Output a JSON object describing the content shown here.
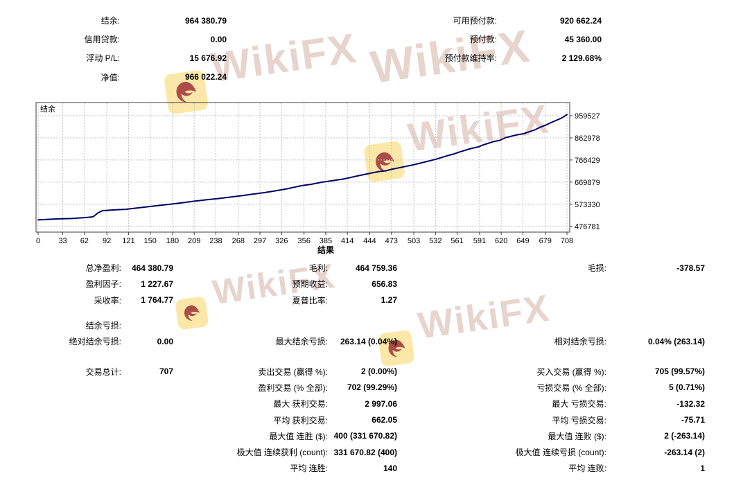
{
  "account_summary": {
    "left": [
      {
        "label": "结余:",
        "value": "964 380.79"
      },
      {
        "label": "信用贷款:",
        "value": "0.00"
      },
      {
        "label": "浮动 P/L:",
        "value": "15 676.92"
      },
      {
        "label": "净值:",
        "value": "966 022.24"
      }
    ],
    "right": [
      {
        "label": "可用预付款:",
        "value": "920 662.24"
      },
      {
        "label": "预付款:",
        "value": "45 360.00"
      },
      {
        "label": "预付款维持率:",
        "value": "2 129.68%"
      }
    ]
  },
  "chart_data": {
    "type": "line",
    "title": "结余",
    "legend_label": "结余",
    "line_color": "#000066",
    "grid": "dashed",
    "grid_color": "#c0c0c0",
    "border_color": "#3c3c3c",
    "x_ticks": [
      0,
      33,
      62,
      92,
      121,
      150,
      180,
      209,
      238,
      268,
      297,
      326,
      356,
      385,
      414,
      444,
      473,
      503,
      532,
      561,
      591,
      620,
      649,
      679,
      708
    ],
    "y_ticks": [
      476781,
      573330,
      669879,
      766429,
      862978,
      959527
    ],
    "xlim": [
      0,
      708
    ],
    "ylim": [
      451500,
      1019500
    ],
    "points": [
      [
        0,
        505000
      ],
      [
        24,
        509000
      ],
      [
        45,
        511000
      ],
      [
        62,
        515000
      ],
      [
        70,
        517000
      ],
      [
        74,
        519500
      ],
      [
        80,
        535000
      ],
      [
        86,
        545000
      ],
      [
        100,
        548500
      ],
      [
        117,
        551000
      ],
      [
        132,
        557000
      ],
      [
        148,
        563000
      ],
      [
        163,
        568500
      ],
      [
        179,
        574000
      ],
      [
        195,
        580500
      ],
      [
        210,
        587000
      ],
      [
        225,
        592500
      ],
      [
        241,
        598000
      ],
      [
        256,
        604000
      ],
      [
        272,
        610500
      ],
      [
        287,
        617000
      ],
      [
        303,
        624000
      ],
      [
        318,
        632000
      ],
      [
        334,
        641000
      ],
      [
        345,
        649000
      ],
      [
        352,
        654000
      ],
      [
        358,
        657000
      ],
      [
        365,
        660000
      ],
      [
        379,
        669000
      ],
      [
        395,
        676500
      ],
      [
        410,
        684000
      ],
      [
        425,
        695000
      ],
      [
        441,
        706000
      ],
      [
        456,
        716000
      ],
      [
        465,
        719000
      ],
      [
        472,
        725000
      ],
      [
        487,
        735000
      ],
      [
        502,
        745000
      ],
      [
        517,
        757000
      ],
      [
        533,
        770000
      ],
      [
        548,
        785000
      ],
      [
        556,
        792000
      ],
      [
        564,
        801000
      ],
      [
        579,
        816000
      ],
      [
        590,
        824000
      ],
      [
        595,
        831000
      ],
      [
        610,
        847000
      ],
      [
        618,
        852000
      ],
      [
        626,
        864000
      ],
      [
        641,
        876000
      ],
      [
        650,
        881000
      ],
      [
        657,
        889000
      ],
      [
        665,
        898000
      ],
      [
        672,
        909000
      ],
      [
        680,
        919000
      ],
      [
        688,
        931000
      ],
      [
        694,
        940000
      ],
      [
        700,
        948000
      ],
      [
        704,
        956000
      ],
      [
        708,
        964381
      ]
    ]
  },
  "results": {
    "title": "结果",
    "rows": [
      {
        "cells": [
          {
            "l": "总净盈利:",
            "v": "464 380.79"
          },
          {
            "l": "毛利:",
            "v": "464 759.36"
          },
          {
            "l": "毛损:",
            "v": "-378.57"
          }
        ]
      },
      {
        "cells": [
          {
            "l": "盈利因子:",
            "v": "1 227.67"
          },
          {
            "l": "预期收益:",
            "v": "656.83"
          },
          null
        ]
      },
      {
        "cells": [
          {
            "l": "采收率:",
            "v": "1 764.77"
          },
          {
            "l": "夏普比率:",
            "v": "1.27"
          },
          null
        ]
      },
      {
        "spacer": 13
      },
      {
        "cells": [
          {
            "l": "结余亏损:",
            "v": ""
          },
          null,
          null
        ]
      },
      {
        "cells": [
          {
            "l": "绝对结余亏损:",
            "v": "0.00"
          },
          {
            "l": "最大结余亏损:",
            "v": "263.14 (0.04%)"
          },
          {
            "l": "相对结余亏损:",
            "v": "0.04% (263.14)"
          }
        ]
      },
      {
        "spacer": 20
      },
      {
        "cells": [
          {
            "l": "交易总计:",
            "v": "707"
          },
          {
            "l": "卖出交易 (赢得 %):",
            "v": "2 (0.00%)"
          },
          {
            "l": "买入交易 (赢得 %):",
            "v": "705 (99.57%)"
          }
        ]
      },
      {
        "cells": [
          null,
          {
            "l": "盈利交易 (% 全部):",
            "v": "702 (99.29%)"
          },
          {
            "l": "亏损交易 (% 全部):",
            "v": "5 (0.71%)"
          }
        ]
      },
      {
        "cells": [
          null,
          {
            "l": "最大 获利交易:",
            "v": "2 997.06"
          },
          {
            "l": "最大 亏损交易:",
            "v": "-132.32"
          }
        ]
      },
      {
        "cells": [
          null,
          {
            "l": "平均 获利交易:",
            "v": "662.05"
          },
          {
            "l": "平均 亏损交易:",
            "v": "-75.71"
          }
        ]
      },
      {
        "cells": [
          null,
          {
            "l": "最大值 连胜 ($):",
            "v": "400 (331 670.82)"
          },
          {
            "l": "最大值 连败 ($):",
            "v": "2 (-263.14)"
          }
        ]
      },
      {
        "cells": [
          null,
          {
            "l": "极大值 连续获利 (count):",
            "v": "331 670.82 (400)"
          },
          {
            "l": "极大值 连续亏损 (count):",
            "v": "-263.14 (2)"
          }
        ]
      },
      {
        "cells": [
          null,
          {
            "l": "平均 连胜:",
            "v": "140"
          },
          {
            "l": "平均 连败:",
            "v": "1"
          }
        ]
      }
    ]
  },
  "watermark": {
    "text": "WikiFX",
    "badge_color": "#fbe59a",
    "eagle_color": "#9c2f2a",
    "text_color": "#e7d4cd"
  }
}
